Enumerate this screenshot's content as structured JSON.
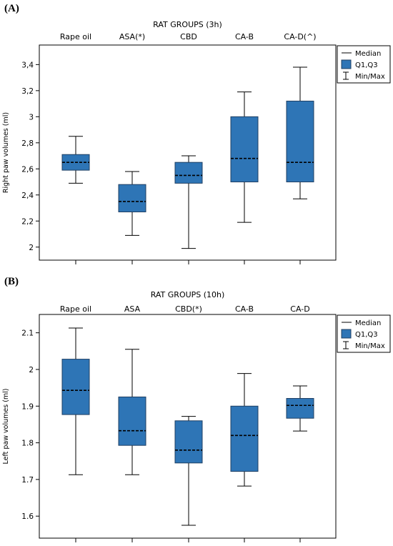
{
  "chart_data": [
    {
      "type": "box",
      "panel_label": "(A)",
      "title": "RAT GROUPS (3h)",
      "ylabel": "Right paw volumes (ml)",
      "ylim": [
        1.9,
        3.55
      ],
      "yticks": [
        2,
        2.2,
        2.4,
        2.6,
        2.8,
        3,
        3.2,
        3.4
      ],
      "ytick_labels": [
        "2",
        "2,2",
        "2,4",
        "2,6",
        "2,8",
        "3",
        "3,2",
        "3,4"
      ],
      "categories": [
        "Rape oil",
        "ASA(*)",
        "CBD",
        "CA-B",
        "CA-D(^)"
      ],
      "boxes": [
        {
          "min": 2.49,
          "q1": 2.59,
          "median": 2.65,
          "q3": 2.71,
          "max": 2.85
        },
        {
          "min": 2.09,
          "q1": 2.27,
          "median": 2.35,
          "q3": 2.48,
          "max": 2.58
        },
        {
          "min": 1.99,
          "q1": 2.49,
          "median": 2.55,
          "q3": 2.65,
          "max": 2.7
        },
        {
          "min": 2.19,
          "q1": 2.5,
          "median": 2.68,
          "q3": 3.0,
          "max": 3.19
        },
        {
          "min": 2.37,
          "q1": 2.5,
          "median": 2.65,
          "q3": 3.12,
          "max": 3.38
        }
      ],
      "legend": [
        "Median",
        "Q1,Q3",
        "Min/Max"
      ],
      "legend_position": "top-right",
      "grid": false
    },
    {
      "type": "box",
      "panel_label": "(B)",
      "title": "RAT GROUPS (10h)",
      "ylabel": "Left paw volumes (ml)",
      "ylim": [
        1.54,
        2.15
      ],
      "yticks": [
        1.6,
        1.7,
        1.8,
        1.9,
        2,
        2.1
      ],
      "ytick_labels": [
        "1.6",
        "1.7",
        "1.8",
        "1.9",
        "2",
        "2.1"
      ],
      "categories": [
        "Rape oil",
        "ASA",
        "CBD(*)",
        "CA-B",
        "CA-D"
      ],
      "boxes": [
        {
          "min": 1.713,
          "q1": 1.877,
          "median": 1.943,
          "q3": 2.028,
          "max": 2.113
        },
        {
          "min": 1.713,
          "q1": 1.793,
          "median": 1.833,
          "q3": 1.925,
          "max": 2.055
        },
        {
          "min": 1.575,
          "q1": 1.745,
          "median": 1.78,
          "q3": 1.86,
          "max": 1.872
        },
        {
          "min": 1.682,
          "q1": 1.722,
          "median": 1.82,
          "q3": 1.9,
          "max": 1.989
        },
        {
          "min": 1.832,
          "q1": 1.867,
          "median": 1.902,
          "q3": 1.921,
          "max": 1.955
        }
      ],
      "legend": [
        "Median",
        "Q1,Q3",
        "Min/Max"
      ],
      "legend_position": "top-right",
      "grid": false
    }
  ],
  "colors": {
    "box_fill": "#2e75b6",
    "box_edge": "#1f3f63",
    "axis": "#000000"
  }
}
